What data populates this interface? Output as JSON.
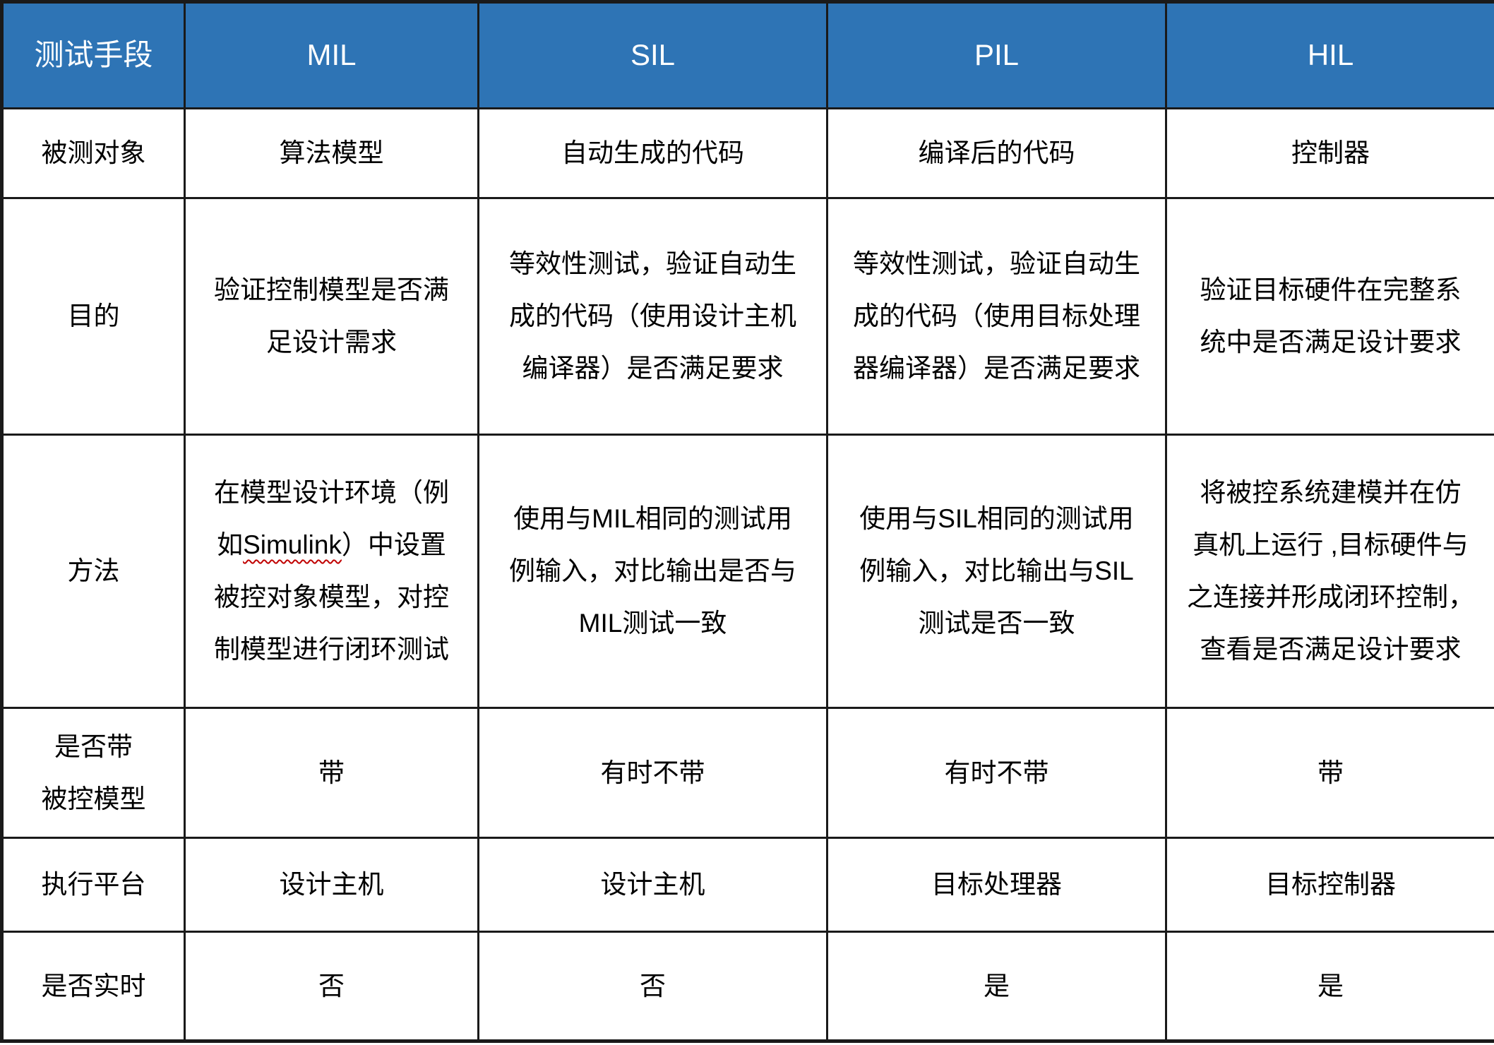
{
  "theme": {
    "header_bg": "#2E74B5",
    "header_text": "#FFFFFF",
    "border": "#1A1A1A",
    "text": "#000000",
    "background": "#FFFFFF",
    "squiggle": "#C00000"
  },
  "table": {
    "header": [
      "测试手段",
      "MIL",
      "SIL",
      "PIL",
      "HIL"
    ],
    "rows": [
      {
        "label": "被测对象",
        "cells": [
          "算法模型",
          "自动生成的代码",
          "编译后的代码",
          "控制器"
        ]
      },
      {
        "label": "目的",
        "cells": [
          "验证控制模型是否满\n足设计需求",
          "等效性测试，验证自动生\n成的代码（使用设计主机\n编译器）是否满足要求",
          "等效性测试，验证自动生\n成的代码（使用目标处理\n器编译器）是否满足要求",
          "验证目标硬件在完整系\n统中是否满足设计要求"
        ]
      },
      {
        "label": "方法",
        "cells": [
          {
            "pre": "在模型设计环境（例\n如",
            "marked": "Simulink",
            "post": "）中设置\n被控对象模型，对控\n制模型进行闭环测试"
          },
          "使用与MIL相同的测试用\n例输入，对比输出是否与\nMIL测试一致",
          "使用与SIL相同的测试用\n例输入，对比输出与SIL\n测试是否一致",
          "将被控系统建模并在仿\n真机上运行 ,目标硬件与\n之连接并形成闭环控制，\n查看是否满足设计要求"
        ]
      },
      {
        "label": "是否带\n被控模型",
        "cells": [
          "带",
          "有时不带",
          "有时不带",
          "带"
        ]
      },
      {
        "label": "执行平台",
        "cells": [
          "设计主机",
          "设计主机",
          "目标处理器",
          "目标控制器"
        ]
      },
      {
        "label": "是否实时",
        "cells": [
          "否",
          "否",
          "是",
          "是"
        ]
      }
    ]
  }
}
